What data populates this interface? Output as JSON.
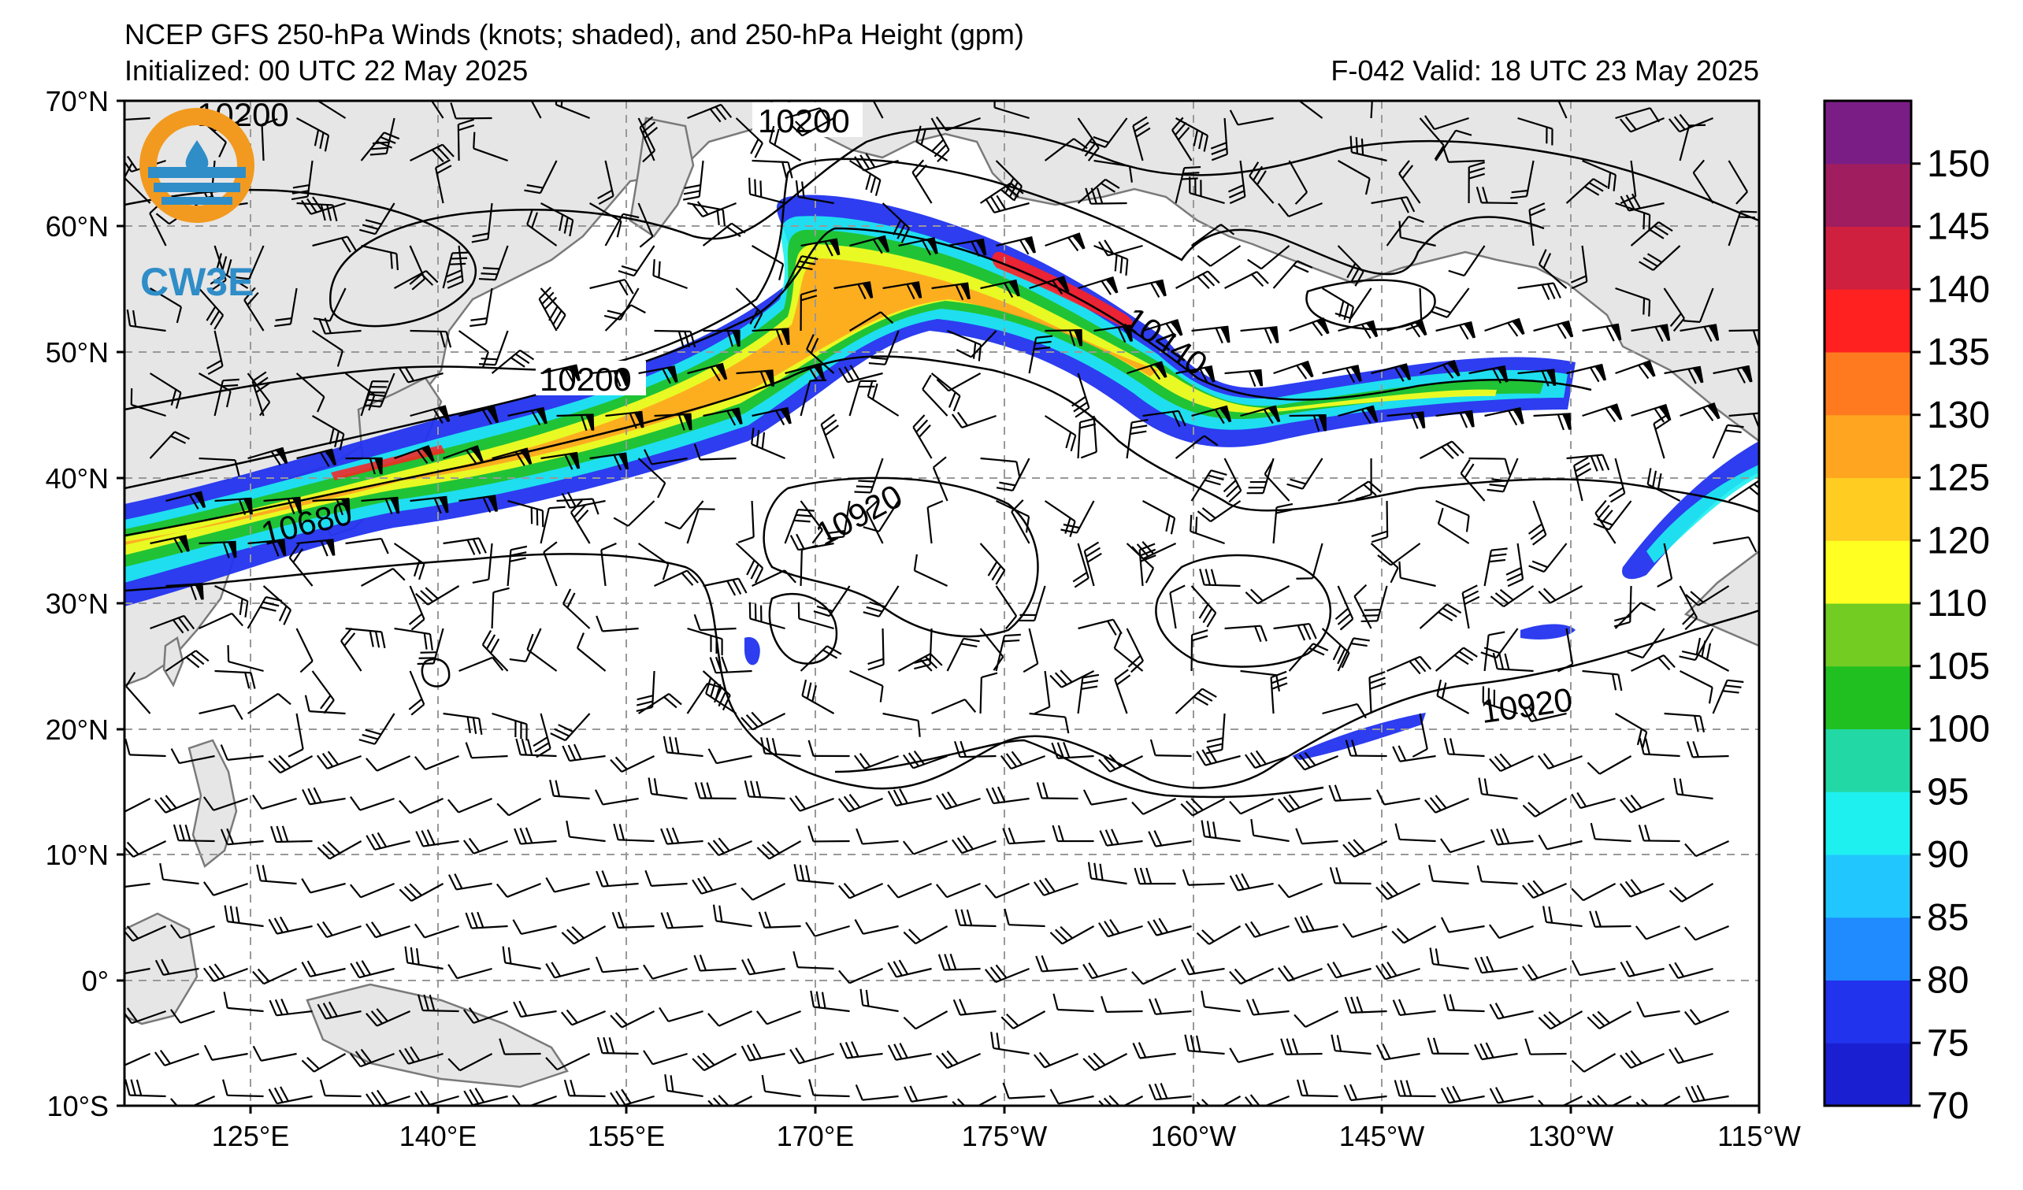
{
  "header": {
    "title": "NCEP GFS 250-hPa Winds (knots; shaded), and 250-hPa Height (gpm)",
    "initialized": "Initialized: 00 UTC 22 May 2025",
    "valid": "F-042  Valid: 18 UTC 23 May 2025"
  },
  "logo": {
    "text": "CW3E",
    "icon": "cw3e-water-drop-logo-icon"
  },
  "axes": {
    "lat_labels": [
      "70°N",
      "60°N",
      "50°N",
      "40°N",
      "30°N",
      "20°N",
      "10°N",
      "0°",
      "10°S"
    ],
    "lon_labels": [
      "125°E",
      "140°E",
      "155°E",
      "170°E",
      "175°W",
      "160°W",
      "145°W",
      "130°W",
      "115°W"
    ]
  },
  "contour_labels": [
    "10200",
    "10200",
    "10680",
    "10920",
    "10440",
    "10920",
    "10200"
  ],
  "colorbar": {
    "ticks": [
      "70",
      "75",
      "80",
      "85",
      "90",
      "95",
      "100",
      "105",
      "110",
      "120",
      "125",
      "130",
      "135",
      "140",
      "145",
      "150"
    ],
    "colors": [
      "#1a1fd1",
      "#2233ee",
      "#1f8bff",
      "#22c6ff",
      "#1ef0f0",
      "#22d9a6",
      "#20c020",
      "#72cc22",
      "#ffff22",
      "#ffcc22",
      "#ffa51f",
      "#ff7a1f",
      "#ff2020",
      "#d02040",
      "#a01e60",
      "#7a1e86"
    ]
  },
  "colors": {
    "land": "#e6e6e6",
    "coast": "#7a7a7a",
    "grid": "#999999",
    "contour": "#000000",
    "logo_orange": "#f29a1f",
    "logo_blue": "#2f8dc8"
  }
}
